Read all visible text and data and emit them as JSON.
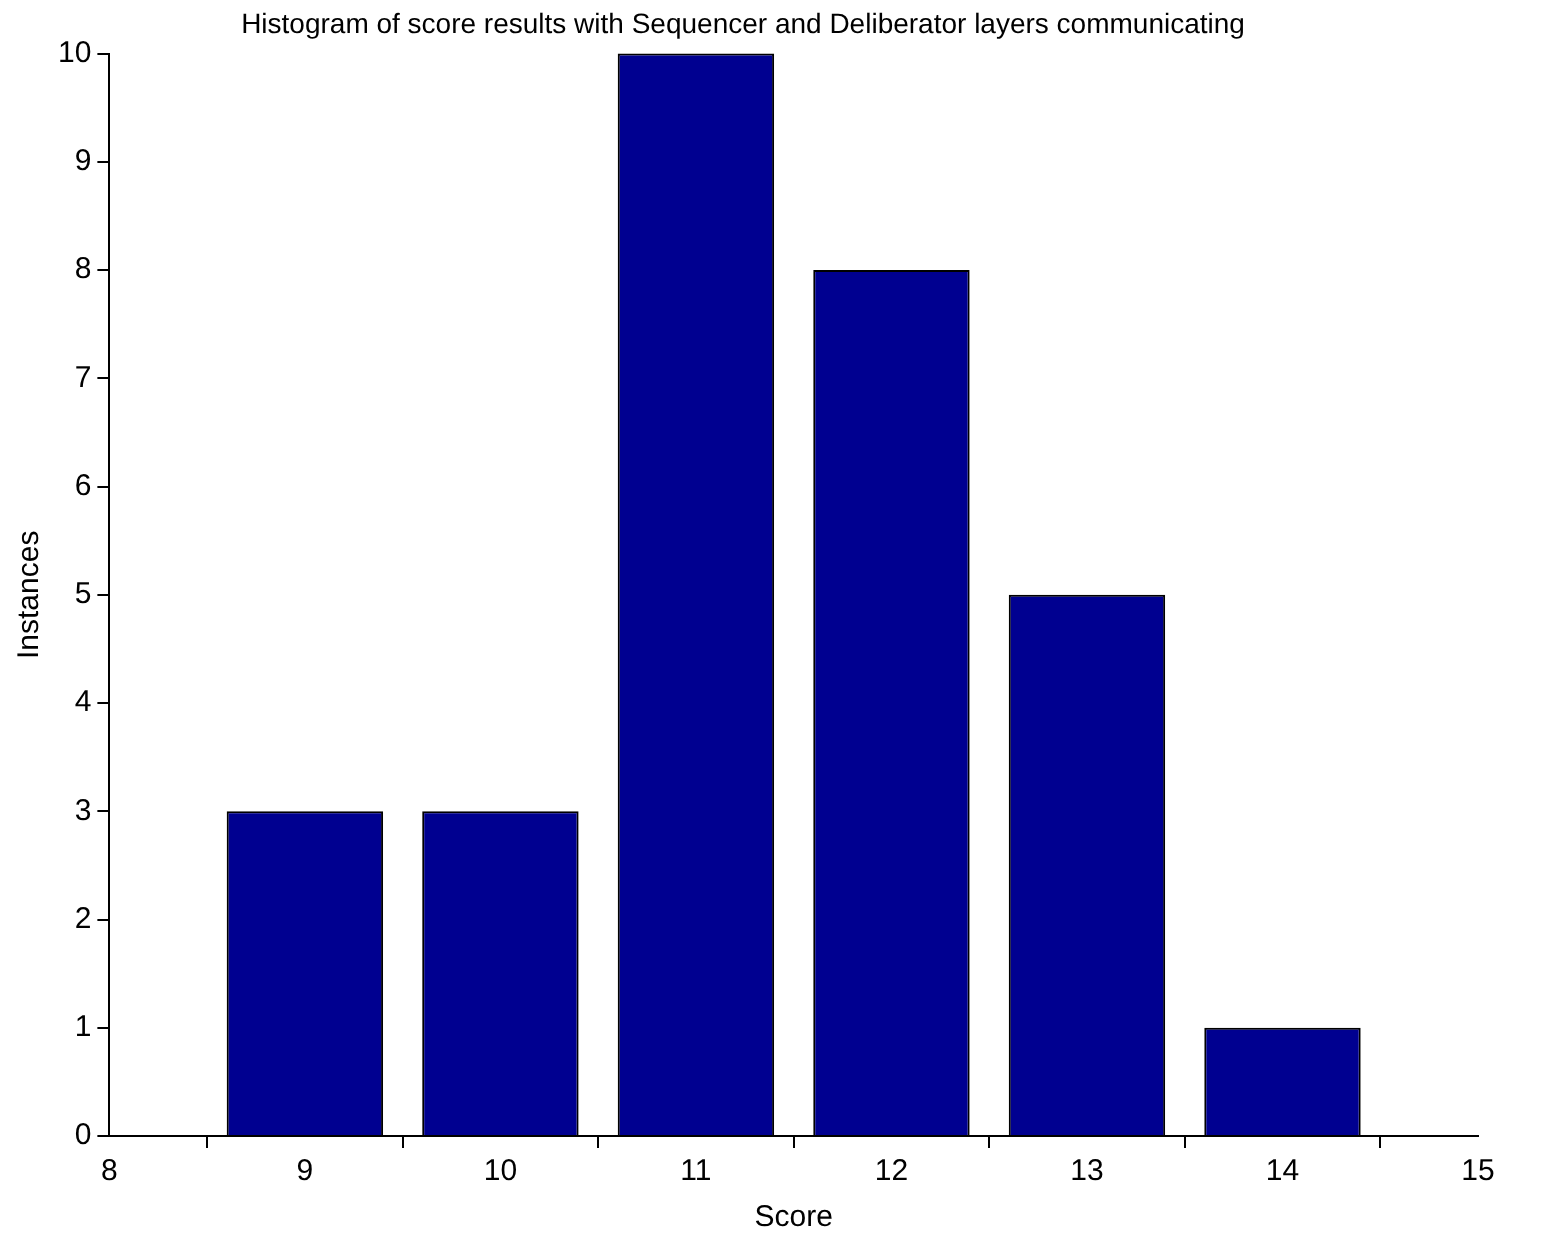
{
  "chart_data": {
    "type": "bar",
    "title": "Histogram of score results with Sequencer and Deliberator layers communicating",
    "xlabel": "Score",
    "ylabel": "Instances",
    "x": [
      9,
      10,
      11,
      12,
      13,
      14
    ],
    "values": [
      3,
      3,
      10,
      8,
      5,
      1
    ],
    "color": "#000090",
    "xlim": [
      8,
      15
    ],
    "xticks": [
      8,
      9,
      10,
      11,
      12,
      13,
      14,
      15
    ],
    "ylim": [
      0,
      10
    ],
    "yticks": [
      0,
      1,
      2,
      3,
      4,
      5,
      6,
      7,
      8,
      9,
      10
    ],
    "grid": false,
    "legend": false
  }
}
